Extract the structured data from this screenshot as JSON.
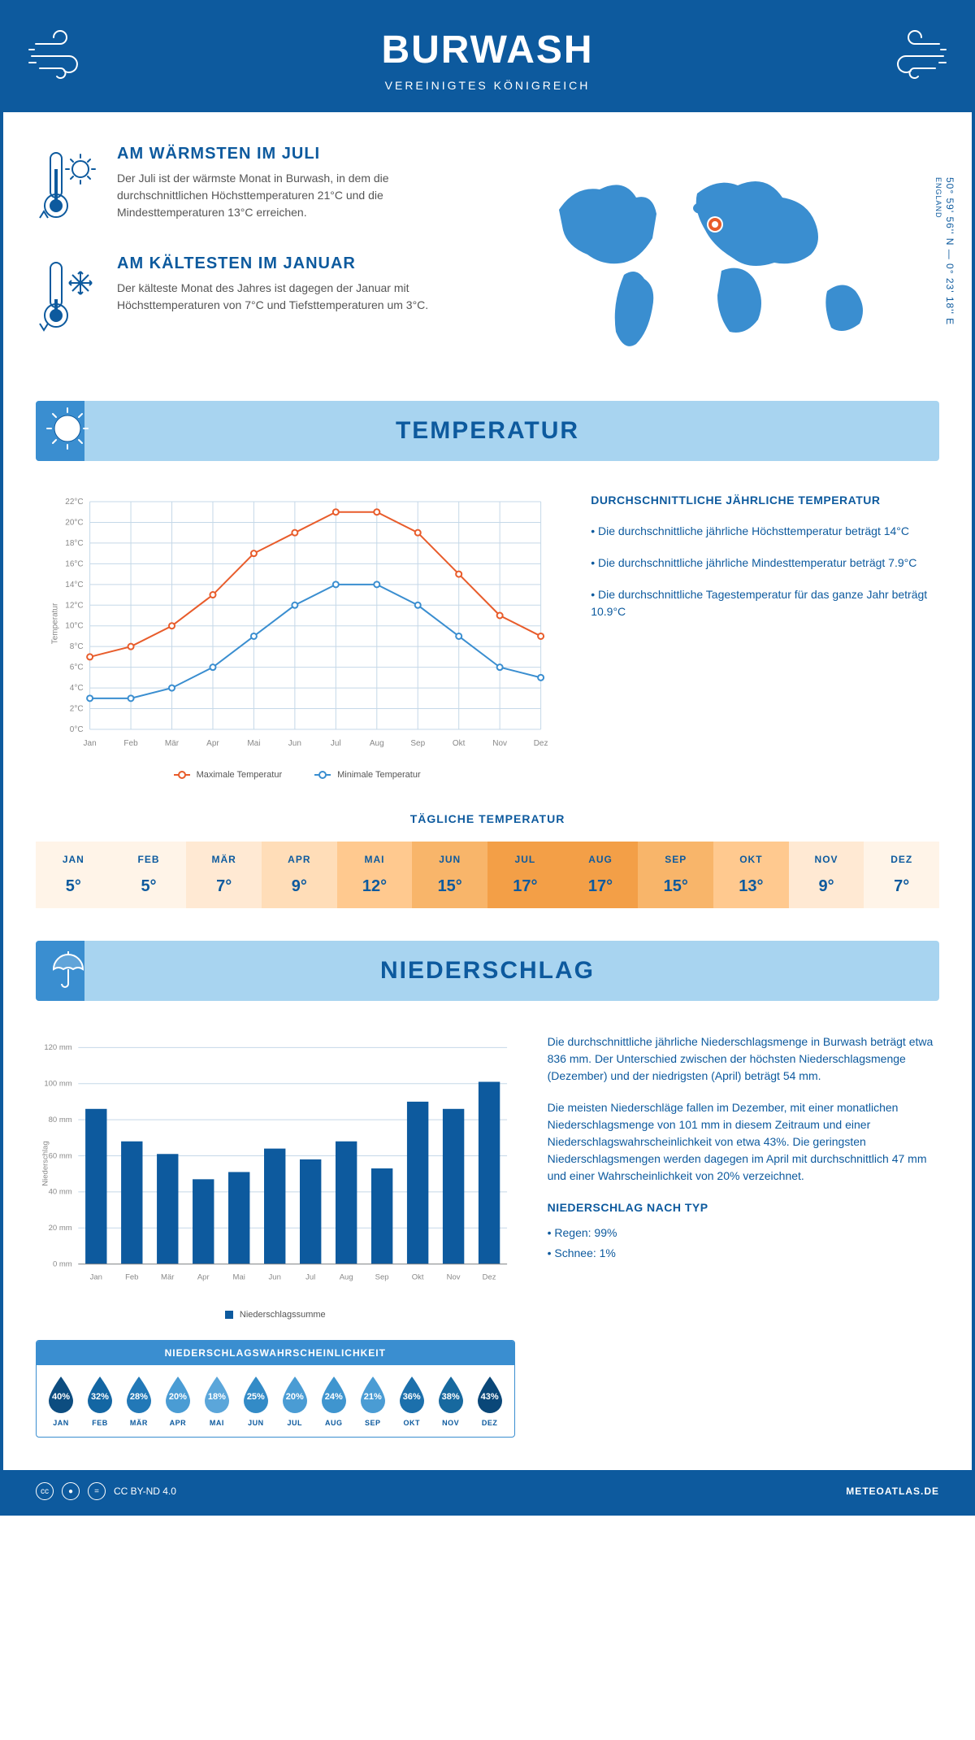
{
  "header": {
    "title": "BURWASH",
    "subtitle": "VEREINIGTES KÖNIGREICH"
  },
  "coords": "50° 59' 56'' N — 0° 23' 18'' E",
  "coords_label": "ENGLAND",
  "intro": {
    "warm_title": "AM WÄRMSTEN IM JULI",
    "warm_text": "Der Juli ist der wärmste Monat in Burwash, in dem die durchschnittlichen Höchsttemperaturen 21°C und die Mindesttemperaturen 13°C erreichen.",
    "cold_title": "AM KÄLTESTEN IM JANUAR",
    "cold_text": "Der kälteste Monat des Jahres ist dagegen der Januar mit Höchsttemperaturen von 7°C und Tiefsttemperaturen um 3°C."
  },
  "sections": {
    "temperature": "TEMPERATUR",
    "precipitation": "NIEDERSCHLAG"
  },
  "temp_chart": {
    "type": "line",
    "months": [
      "Jan",
      "Feb",
      "Mär",
      "Apr",
      "Mai",
      "Jun",
      "Jul",
      "Aug",
      "Sep",
      "Okt",
      "Nov",
      "Dez"
    ],
    "max_series": [
      7,
      8,
      10,
      13,
      17,
      19,
      21,
      21,
      19,
      15,
      11,
      9
    ],
    "min_series": [
      3,
      3,
      4,
      6,
      9,
      12,
      14,
      14,
      12,
      9,
      6,
      5
    ],
    "ylim": [
      0,
      22
    ],
    "ytick_step": 2,
    "ylabel": "Temperatur",
    "colors": {
      "max": "#e85c2b",
      "min": "#3a8ed0",
      "grid": "#c5d8e8",
      "bg": "#ffffff"
    },
    "legend_max": "Maximale Temperatur",
    "legend_min": "Minimale Temperatur"
  },
  "temp_text": {
    "heading": "DURCHSCHNITTLICHE JÄHRLICHE TEMPERATUR",
    "b1": "• Die durchschnittliche jährliche Höchsttemperatur beträgt 14°C",
    "b2": "• Die durchschnittliche jährliche Mindesttemperatur beträgt 7.9°C",
    "b3": "• Die durchschnittliche Tagestemperatur für das ganze Jahr beträgt 10.9°C"
  },
  "daily_temp": {
    "heading": "TÄGLICHE TEMPERATUR",
    "months": [
      "JAN",
      "FEB",
      "MÄR",
      "APR",
      "MAI",
      "JUN",
      "JUL",
      "AUG",
      "SEP",
      "OKT",
      "NOV",
      "DEZ"
    ],
    "values": [
      "5°",
      "5°",
      "7°",
      "9°",
      "12°",
      "15°",
      "17°",
      "17°",
      "15°",
      "13°",
      "9°",
      "7°"
    ],
    "colors": [
      "#fff4e8",
      "#fff4e8",
      "#ffe9d3",
      "#ffddb8",
      "#ffc98f",
      "#f8b56a",
      "#f39f47",
      "#f39f47",
      "#f8b56a",
      "#ffc98f",
      "#ffe9d3",
      "#fff4e8"
    ]
  },
  "precip_chart": {
    "type": "bar",
    "months": [
      "Jan",
      "Feb",
      "Mär",
      "Apr",
      "Mai",
      "Jun",
      "Jul",
      "Aug",
      "Sep",
      "Okt",
      "Nov",
      "Dez"
    ],
    "values": [
      86,
      68,
      61,
      47,
      51,
      64,
      58,
      68,
      53,
      90,
      86,
      101
    ],
    "ylim": [
      0,
      120
    ],
    "ytick_step": 20,
    "ylabel": "Niederschlag",
    "bar_color": "#0d5a9e",
    "grid_color": "#c5d8e8",
    "legend": "Niederschlagssumme"
  },
  "precip_text": {
    "p1": "Die durchschnittliche jährliche Niederschlagsmenge in Burwash beträgt etwa 836 mm. Der Unterschied zwischen der höchsten Niederschlagsmenge (Dezember) und der niedrigsten (April) beträgt 54 mm.",
    "p2": "Die meisten Niederschläge fallen im Dezember, mit einer monatlichen Niederschlagsmenge von 101 mm in diesem Zeitraum und einer Niederschlagswahrscheinlichkeit von etwa 43%. Die geringsten Niederschlagsmengen werden dagegen im April mit durchschnittlich 47 mm und einer Wahrscheinlichkeit von 20% verzeichnet.",
    "type_heading": "NIEDERSCHLAG NACH TYP",
    "type_1": "• Regen: 99%",
    "type_2": "• Schnee: 1%"
  },
  "prob": {
    "heading": "NIEDERSCHLAGSWAHRSCHEINLICHKEIT",
    "months": [
      "JAN",
      "FEB",
      "MÄR",
      "APR",
      "MAI",
      "JUN",
      "JUL",
      "AUG",
      "SEP",
      "OKT",
      "NOV",
      "DEZ"
    ],
    "values": [
      "40%",
      "32%",
      "28%",
      "20%",
      "18%",
      "25%",
      "20%",
      "24%",
      "21%",
      "36%",
      "38%",
      "43%"
    ],
    "colors": [
      "#0d4d80",
      "#1366a3",
      "#2278b7",
      "#4a9cd4",
      "#5ba6da",
      "#338bc7",
      "#4a9cd4",
      "#3f95cf",
      "#4a9cd4",
      "#1c70ac",
      "#17699f",
      "#0a4778"
    ]
  },
  "footer": {
    "license": "CC BY-ND 4.0",
    "site": "METEOATLAS.DE"
  }
}
